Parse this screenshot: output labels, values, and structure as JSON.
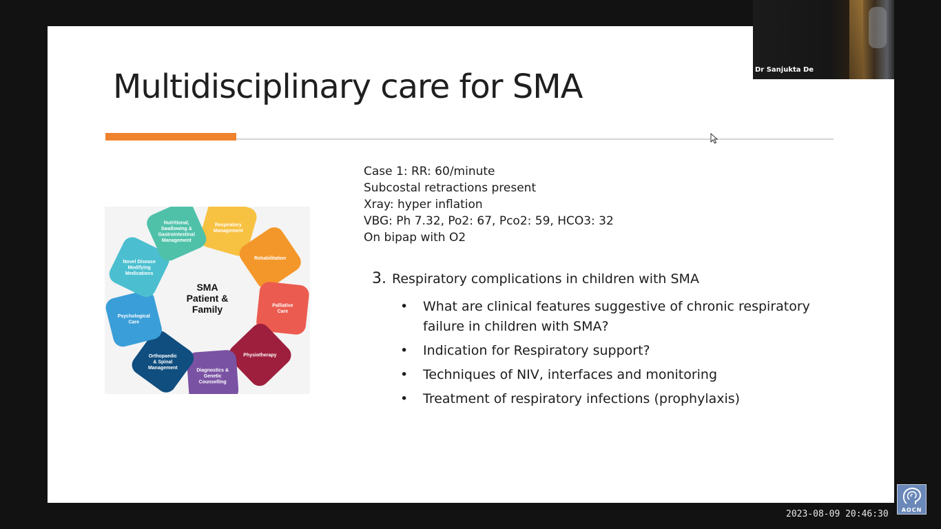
{
  "slide": {
    "title": "Multidisciplinary care for SMA",
    "case_lines": [
      "Case 1: RR: 60/minute",
      "Subcostal retractions present",
      "Xray: hyper inflation",
      "VBG: Ph 7.32, Po2: 67, Pco2: 59, HCO3: 32",
      "On bipap with O2"
    ],
    "question": {
      "number": "3.",
      "text": "Respiratory complications in children with SMA"
    },
    "bullet_char": "•",
    "bullets": [
      "What are clinical features suggestive of chronic respiratory failure in children with SMA?",
      "Indication for Respiratory support?",
      "Techniques of NIV, interfaces and monitoring",
      "Treatment of respiratory infections (prophylaxis)"
    ],
    "diagram": {
      "center": [
        "SMA",
        "Patient &",
        "Family"
      ],
      "segments": [
        {
          "label": [
            "Respiratory",
            "Management"
          ],
          "color": "#f7c142"
        },
        {
          "label": [
            "Rehabilitation"
          ],
          "color": "#f4972a"
        },
        {
          "label": [
            "Palliative",
            "Care"
          ],
          "color": "#ec5b4f"
        },
        {
          "label": [
            "Physiotherapy"
          ],
          "color": "#9e1f3d"
        },
        {
          "label": [
            "Diagnostics &",
            "Genetic",
            "Counselling"
          ],
          "color": "#7a52a3"
        },
        {
          "label": [
            "Orthopaedic",
            "& Spinal",
            "Management"
          ],
          "color": "#0f4e7e"
        },
        {
          "label": [
            "Psychological",
            "Care"
          ],
          "color": "#3a9ed8"
        },
        {
          "label": [
            "Novel Disease",
            "Modifying",
            "Medications"
          ],
          "color": "#4bbfd0"
        },
        {
          "label": [
            "Nutritional,",
            "Swallowing &",
            "Gastrointestinal",
            "Management"
          ],
          "color": "#4fc1a9"
        }
      ]
    }
  },
  "video_tile": {
    "speaker_name": "Dr Sanjukta De"
  },
  "footer": {
    "timestamp": "2023-08-09 20:46:30",
    "logo_text": "AOCN"
  },
  "colors": {
    "accent": "#f0822e",
    "background": "#121212"
  }
}
